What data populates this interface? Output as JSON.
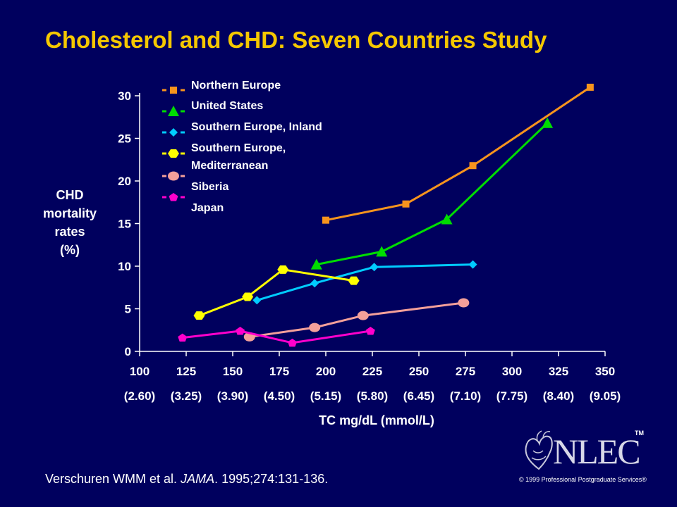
{
  "title": "Cholesterol and CHD: Seven Countries Study",
  "citation": {
    "authors": "Verschuren WMM et al. ",
    "journal": "JAMA",
    "rest": ". 1995;274:131-136."
  },
  "logo": {
    "text": "NLEC",
    "tm": "TM"
  },
  "copyright": "© 1999 Professional Postgraduate Services®",
  "colors": {
    "background": "#00005e",
    "title": "#f5c800"
  },
  "chart_data": {
    "type": "line",
    "title": "Cholesterol and CHD: Seven Countries Study",
    "ylabel": [
      "CHD",
      "mortality",
      "rates",
      "(%)"
    ],
    "xlabel": "TC mg/dL (mmol/L)",
    "xlim": [
      100,
      350
    ],
    "ylim": [
      0,
      30
    ],
    "x_ticks": [
      100,
      125,
      150,
      175,
      200,
      225,
      250,
      275,
      300,
      325,
      350
    ],
    "x_tick_sublabels": [
      "(2.60)",
      "(3.25)",
      "(3.90)",
      "(4.50)",
      "(5.15)",
      "(5.80)",
      "(6.45)",
      "(7.10)",
      "(7.75)",
      "(8.40)",
      "(9.05)"
    ],
    "y_ticks": [
      0,
      5,
      10,
      15,
      20,
      25,
      30
    ],
    "grid": false,
    "legend_position": "top-left",
    "series": [
      {
        "name": "Northern Europe",
        "color": "#f7941d",
        "marker": "square",
        "x": [
          200,
          243,
          279,
          342
        ],
        "y": [
          15.4,
          17.3,
          21.8,
          31.0
        ]
      },
      {
        "name": "United States",
        "color": "#00dd00",
        "marker": "triangle",
        "x": [
          195,
          230,
          265,
          319
        ],
        "y": [
          10.2,
          11.7,
          15.5,
          26.8
        ]
      },
      {
        "name": "Southern Europe, Inland",
        "color": "#00ccff",
        "marker": "diamond",
        "x": [
          163,
          194,
          226,
          279
        ],
        "y": [
          6.0,
          8.0,
          9.9,
          10.2
        ]
      },
      {
        "name": "Southern Europe, Mediterranean",
        "color": "#ffff00",
        "marker": "hexagon",
        "x": [
          132,
          158,
          177,
          215
        ],
        "y": [
          4.2,
          6.4,
          9.6,
          8.3
        ]
      },
      {
        "name": "Siberia",
        "color": "#f4a09a",
        "marker": "circle",
        "x": [
          159,
          194,
          220,
          274
        ],
        "y": [
          1.7,
          2.8,
          4.2,
          5.7
        ]
      },
      {
        "name": "Japan",
        "color": "#ff00cc",
        "marker": "pentagon",
        "x": [
          123,
          154,
          182,
          224
        ],
        "y": [
          1.6,
          2.4,
          1.0,
          2.4
        ]
      }
    ]
  }
}
